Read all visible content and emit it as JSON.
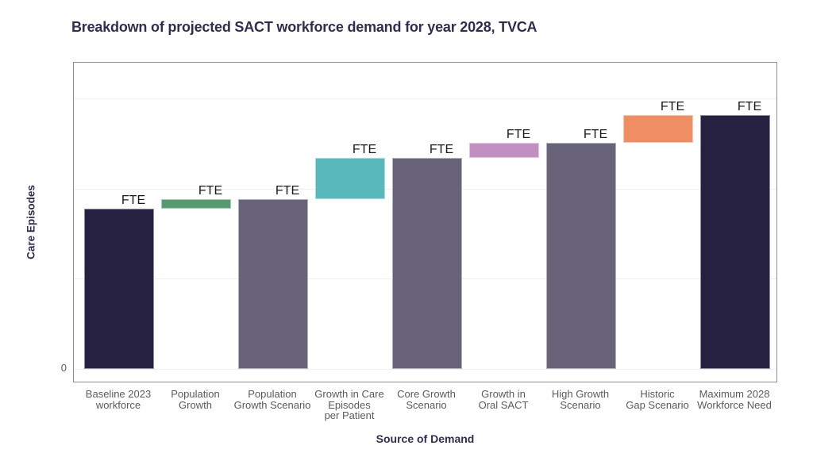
{
  "title": "Breakdown of projected SACT workforce demand for year 2028, TVCA",
  "colors": {
    "navy": "#262140",
    "slate": "#686379",
    "green": "#569b6f",
    "teal": "#58b8bc",
    "violet": "#c28fc3",
    "orange": "#f08e63",
    "title_text": "#302d52",
    "tick_text": "#5a5a5a",
    "panel_border": "#8f8b9d",
    "gridline": "#efeef2",
    "bar_label_text": "#1a1a1a"
  },
  "chart_data": {
    "type": "waterfall",
    "title": "Breakdown of projected SACT workforce demand for year 2028, TVCA",
    "xlabel": "Source of Demand",
    "ylabel": "Care Episodes",
    "y_tick_labels": [
      "0"
    ],
    "ylim": [
      -5.6,
      120.6
    ],
    "gridlines_y": [
      0,
      35.5,
      71,
      106.5
    ],
    "legend": "none",
    "grid": "horizontal only, very faint; panel framed with thin grey-purple border",
    "value_note": "Numeric FTE values are redacted on the chart: every bar carries the text label 'FTE' and the y axis shows only '0'. Bar heights below are relative units measured from the image (tallest bar = 100).",
    "bar_label": "FTE",
    "bars": [
      {
        "label": "Baseline 2023 workforce",
        "tick_lines": [
          "Baseline 2023",
          "workforce"
        ],
        "kind": "total",
        "base": 0,
        "top": 63,
        "delta": 63,
        "color_key": "navy",
        "bar_label": "FTE"
      },
      {
        "label": "Population Growth",
        "tick_lines": [
          "Population",
          "Growth"
        ],
        "kind": "increment",
        "base": 63,
        "top": 67,
        "delta": 4,
        "color_key": "green",
        "bar_label": "FTE"
      },
      {
        "label": "Population Growth Scenario",
        "tick_lines": [
          "Population",
          "Growth Scenario"
        ],
        "kind": "total",
        "base": 0,
        "top": 67,
        "delta": 67,
        "color_key": "slate",
        "bar_label": "FTE"
      },
      {
        "label": "Growth in Care Episodes per Patient",
        "tick_lines": [
          "Growth in Care",
          "Episodes",
          "per Patient"
        ],
        "kind": "increment",
        "base": 67,
        "top": 83,
        "delta": 16,
        "color_key": "teal",
        "bar_label": "FTE"
      },
      {
        "label": "Core Growth Scenario",
        "tick_lines": [
          "Core Growth",
          "Scenario"
        ],
        "kind": "total",
        "base": 0,
        "top": 83,
        "delta": 83,
        "color_key": "slate",
        "bar_label": "FTE"
      },
      {
        "label": "Growth in Oral SACT",
        "tick_lines": [
          "Growth in",
          "Oral SACT"
        ],
        "kind": "increment",
        "base": 83,
        "top": 89,
        "delta": 6,
        "color_key": "violet",
        "bar_label": "FTE"
      },
      {
        "label": "High Growth Scenario",
        "tick_lines": [
          "High Growth",
          "Scenario"
        ],
        "kind": "total",
        "base": 0,
        "top": 89,
        "delta": 89,
        "color_key": "slate",
        "bar_label": "FTE"
      },
      {
        "label": "Historic Gap Scenario",
        "tick_lines": [
          "Historic",
          "Gap Scenario"
        ],
        "kind": "increment",
        "base": 89,
        "top": 100,
        "delta": 11,
        "color_key": "orange",
        "bar_label": "FTE"
      },
      {
        "label": "Maximum 2028 Workforce Need",
        "tick_lines": [
          "Maximum 2028",
          "Workforce Need"
        ],
        "kind": "total",
        "base": 0,
        "top": 100,
        "delta": 100,
        "color_key": "navy",
        "bar_label": "FTE"
      }
    ]
  }
}
